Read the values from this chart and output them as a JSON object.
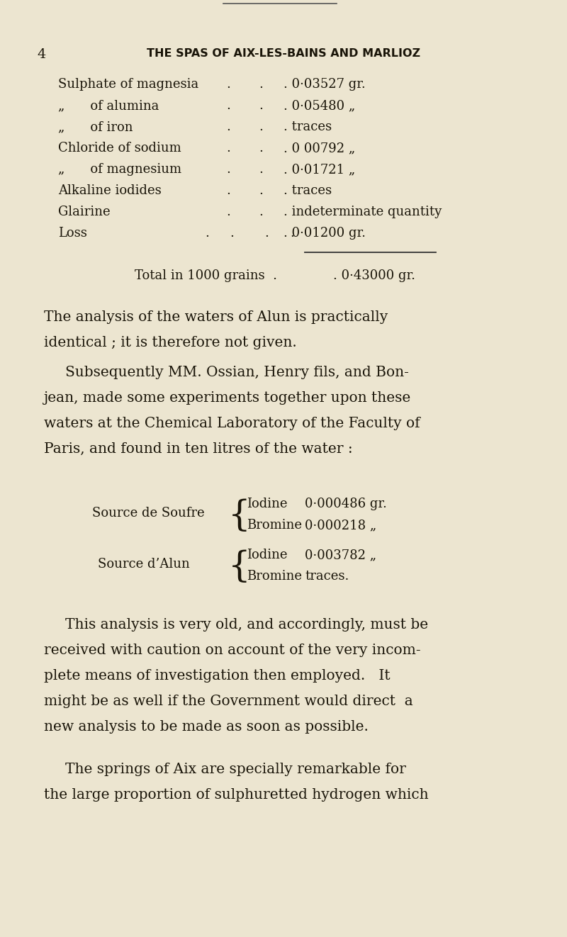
{
  "bg_color": "#ece5d0",
  "text_color": "#1a1509",
  "page_num": "4",
  "header": "THE SPAS OF AIX-LES-BAINS AND MARLIOZ",
  "label_col": [
    "Sulphate of magnesia",
    "„  of alumina",
    "„  of iron",
    "Chloride of sodium",
    "„  of magnesium",
    "Alkaline iodides",
    "Glairine",
    "Loss"
  ],
  "dots_col": [
    ".     .",
    ".     .",
    ".     .",
    ".     .",
    ".     .",
    ".     .",
    ".     .",
    ".   .   .   ."
  ],
  "val_col": [
    ". 0·03527 gr.",
    ". 0·05480 „",
    ". traces",
    ". 0 00792 „",
    ". 0·01721 „",
    ". traces",
    ". indeterminate quantity",
    ". 0·01200 gr."
  ],
  "total_label": "Total in 1000 grains  .",
  "total_value": ". 0·43000 gr.",
  "para1_line1": "The analysis of the waters of Alun is practically",
  "para1_line2": "identical ; it is therefore not given.",
  "para2_lines": [
    "Subsequently MM. Ossian, Henry fils, and Bon-",
    "jean, made some experiments together upon these",
    "waters at the Chemical Laboratory of the Faculty of",
    "Paris, and found in ten litres of the water :"
  ],
  "source1_label": "Source de Soufre",
  "source1_rows": [
    [
      "Iodine",
      "0·000486 gr."
    ],
    [
      "Bromine",
      "0·000218 „"
    ]
  ],
  "source2_label": "Source d’Alun",
  "source2_rows": [
    [
      "Iodine",
      "0·003782 „"
    ],
    [
      "Bromine",
      "traces."
    ]
  ],
  "para3_lines": [
    "This analysis is very old, and accordingly, must be",
    "received with caution on account of the very incom-",
    "plete means of investigation then employed.   It",
    "might be as well if the Government would direct  a",
    "new analysis to be made as soon as possible."
  ],
  "para4_lines": [
    "The springs of Aix are specially remarkable for",
    "the large proportion of sulphuretted hydrogen which"
  ],
  "figsize": [
    8.0,
    13.22
  ],
  "dpi": 100
}
